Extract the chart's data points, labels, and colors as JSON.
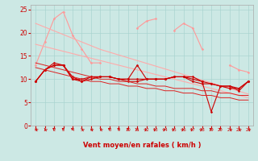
{
  "background_color": "#cce8e4",
  "grid_color": "#aad4d0",
  "xlabel": "Vent moyen/en rafales ( km/h )",
  "x_ticks": [
    0,
    1,
    2,
    3,
    4,
    5,
    6,
    7,
    8,
    9,
    10,
    11,
    12,
    13,
    14,
    15,
    16,
    17,
    18,
    19,
    20,
    21,
    22,
    23
  ],
  "ylim": [
    0,
    26
  ],
  "yticks": [
    0,
    5,
    10,
    15,
    20,
    25
  ],
  "series": [
    {
      "color": "#ff9999",
      "lw": 0.8,
      "marker": "D",
      "ms": 1.5,
      "y": [
        13.0,
        18.0,
        23.0,
        24.5,
        19.5,
        16.5,
        13.5,
        13.5,
        null,
        null,
        null,
        21.0,
        22.5,
        23.0,
        null,
        20.5,
        22.0,
        21.0,
        16.5,
        null,
        null,
        13.0,
        12.0,
        11.5
      ]
    },
    {
      "color": "#ffaaaa",
      "lw": 0.8,
      "marker": null,
      "ms": 0,
      "y": [
        22.0,
        21.2,
        20.4,
        19.6,
        18.8,
        18.0,
        17.2,
        16.4,
        15.8,
        15.2,
        14.6,
        14.0,
        13.4,
        12.8,
        12.2,
        11.6,
        11.0,
        10.4,
        9.8,
        9.2,
        8.6,
        8.0,
        7.4,
        6.8
      ]
    },
    {
      "color": "#ffaaaa",
      "lw": 0.8,
      "marker": null,
      "ms": 0,
      "y": [
        17.5,
        17.0,
        16.5,
        16.0,
        15.5,
        15.0,
        14.5,
        14.0,
        13.5,
        13.0,
        12.5,
        12.0,
        11.5,
        11.0,
        10.5,
        10.0,
        9.5,
        9.0,
        8.5,
        8.0,
        7.5,
        7.0,
        6.5,
        6.0
      ]
    },
    {
      "color": "#cc0000",
      "lw": 0.8,
      "marker": "D",
      "ms": 1.5,
      "y": [
        9.5,
        12.0,
        13.0,
        13.0,
        10.5,
        9.5,
        10.5,
        10.5,
        10.5,
        10.0,
        10.0,
        13.0,
        10.0,
        10.0,
        10.0,
        10.5,
        10.5,
        10.5,
        9.5,
        3.0,
        8.5,
        8.5,
        7.5,
        9.5
      ]
    },
    {
      "color": "#cc0000",
      "lw": 0.8,
      "marker": "D",
      "ms": 1.5,
      "y": [
        9.5,
        12.0,
        13.0,
        13.0,
        10.0,
        9.5,
        10.0,
        10.5,
        10.5,
        10.0,
        9.5,
        9.5,
        10.0,
        10.0,
        10.0,
        10.5,
        10.5,
        9.5,
        9.0,
        9.0,
        8.5,
        8.5,
        8.0,
        9.5
      ]
    },
    {
      "color": "#cc0000",
      "lw": 0.8,
      "marker": "D",
      "ms": 1.5,
      "y": [
        9.5,
        12.0,
        13.5,
        13.0,
        10.0,
        10.0,
        10.5,
        10.5,
        10.5,
        10.0,
        10.0,
        10.0,
        10.0,
        10.0,
        10.0,
        10.5,
        10.5,
        10.0,
        9.5,
        9.0,
        8.5,
        8.0,
        8.0,
        9.5
      ]
    },
    {
      "color": "#dd2222",
      "lw": 0.7,
      "marker": null,
      "ms": 0,
      "y": [
        13.5,
        13.0,
        12.5,
        12.0,
        11.5,
        11.0,
        10.5,
        10.0,
        10.0,
        9.5,
        9.5,
        9.0,
        9.0,
        8.5,
        8.5,
        8.0,
        8.0,
        8.0,
        7.5,
        7.5,
        7.0,
        7.0,
        6.5,
        6.5
      ]
    },
    {
      "color": "#dd2222",
      "lw": 0.7,
      "marker": null,
      "ms": 0,
      "y": [
        12.5,
        12.0,
        11.5,
        11.0,
        10.5,
        10.0,
        9.5,
        9.5,
        9.0,
        9.0,
        8.5,
        8.5,
        8.0,
        8.0,
        7.5,
        7.5,
        7.0,
        7.0,
        6.5,
        6.5,
        6.0,
        6.0,
        5.5,
        5.5
      ]
    }
  ],
  "arrow_directions": [
    225,
    225,
    210,
    210,
    210,
    225,
    225,
    225,
    210,
    210,
    180,
    180,
    135,
    135,
    135,
    135,
    135,
    135,
    135,
    210,
    210,
    225,
    225,
    225
  ],
  "arrow_color": "#cc0000"
}
